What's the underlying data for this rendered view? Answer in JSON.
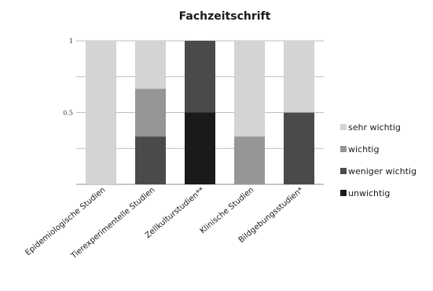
{
  "chart_data": {
    "type": "bar",
    "stacked": true,
    "title": "Fachzeitschrift",
    "xlabel": "",
    "ylabel": "",
    "categories": [
      "Epidemiologische Studien",
      "Tierexperimentelle Studien",
      "Zellkulturstudien**",
      "Klinische Studien",
      "Bildgebungsstudien*"
    ],
    "series": [
      {
        "name": "unwichtig",
        "color": "#1a1a1a",
        "values": [
          0,
          0,
          0.5,
          0,
          0
        ]
      },
      {
        "name": "weniger wichtig",
        "color": "#4a4a4a",
        "values": [
          0,
          0.333,
          0.5,
          0,
          0.5
        ]
      },
      {
        "name": "wichtig",
        "color": "#969696",
        "values": [
          0,
          0.333,
          0,
          0.333,
          0
        ]
      },
      {
        "name": "sehr wichtig",
        "color": "#d4d4d4",
        "values": [
          1,
          0.334,
          0,
          0.667,
          0.5
        ]
      }
    ],
    "legend_order": [
      "sehr wichtig",
      "wichtig",
      "weniger wichtig",
      "unwichtig"
    ],
    "ylim": [
      0,
      1
    ],
    "yticks": [
      0.5,
      1
    ],
    "ytick_labels": [
      "0.5",
      "1"
    ],
    "grid": true,
    "legend_position": "right"
  }
}
